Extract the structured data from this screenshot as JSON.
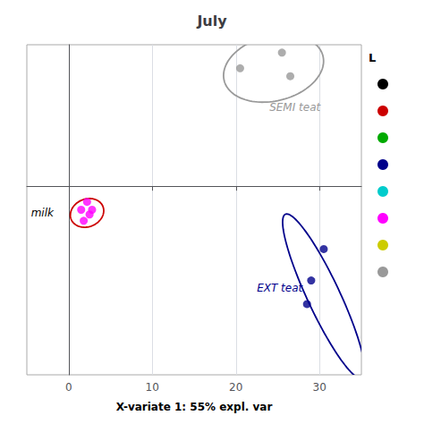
{
  "chart_data": {
    "type": "scatter",
    "title": "July",
    "xlabel": "X-variate 1: 55% expl. var",
    "xlim": [
      -5,
      35
    ],
    "ylim": [
      -12,
      9
    ],
    "xticks": [
      0,
      10,
      20,
      30
    ],
    "yticks": [],
    "grid": true,
    "tick_labels": "x",
    "series": [
      {
        "color": "#999999",
        "x": [
          20.5,
          25.5,
          26.5
        ],
        "values": [
          7.5,
          8.5,
          7.0
        ]
      },
      {
        "color": "#00008B",
        "x": [
          30.5,
          29.0,
          28.5
        ],
        "values": [
          -4.0,
          -6.0,
          -7.5
        ]
      },
      {
        "color": "#FF00FF",
        "x": [
          1.5,
          2.2,
          2.5,
          1.8,
          2.8
        ],
        "values": [
          -1.5,
          -1.0,
          -1.8,
          -2.2,
          -1.5
        ]
      }
    ],
    "ellipses": [
      {
        "cx": 24.5,
        "cy": 7.5,
        "width": 12.0,
        "height": 4.2,
        "angle": 5,
        "color": "#999999"
      },
      {
        "cx": 30.5,
        "cy": -7.0,
        "width": 3.2,
        "height": 14.0,
        "angle": 43,
        "color": "#00008B"
      },
      {
        "cx": 2.2,
        "cy": -1.7,
        "width": 4.0,
        "height": 1.8,
        "angle": 5,
        "color": "#cc0000"
      }
    ],
    "annotations": [
      {
        "text": "SEMI teat",
        "x": 24.0,
        "y": 5.0,
        "color": "#999999"
      },
      {
        "text": "EXT teat",
        "x": 22.5,
        "y": -6.5,
        "color": "#00008B"
      },
      {
        "text": "milk",
        "x": -4.5,
        "y": -1.7,
        "color": "#000000"
      }
    ],
    "key": {
      "title": "L",
      "colors": [
        "#000000",
        "#cc0000",
        "#00aa00",
        "#00008B",
        "#00cccc",
        "#FF00FF",
        "#cccc00",
        "#999999"
      ]
    }
  }
}
